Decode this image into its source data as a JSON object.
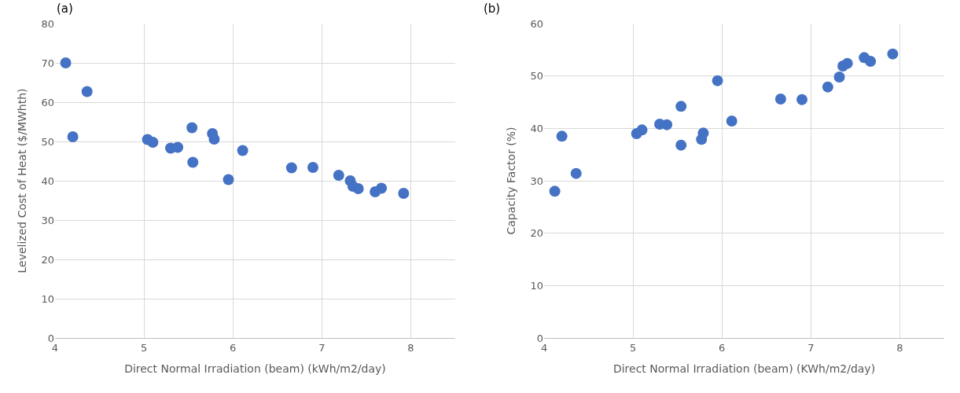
{
  "chart_data": [
    {
      "type": "scatter",
      "annotations": [
        "(a)"
      ],
      "xlabel": "Direct Normal Irradiation (beam) (kWh/m2/day)",
      "ylabel": "Levelized Cost of Heat ($/MWhth)",
      "x": [
        4.12,
        4.2,
        4.36,
        5.04,
        5.1,
        5.3,
        5.38,
        5.54,
        5.55,
        5.77,
        5.79,
        5.95,
        6.11,
        6.66,
        6.9,
        7.19,
        7.32,
        7.35,
        7.41,
        7.6,
        7.67,
        7.92
      ],
      "series": [
        {
          "color": "#4472c4",
          "values": [
            70,
            51.2,
            62.7,
            50.5,
            49.8,
            48.3,
            48.5,
            53.5,
            44.7,
            52,
            50.6,
            40.3,
            47.7,
            43.3,
            43.4,
            41.4,
            40,
            38.6,
            38,
            37.2,
            38.1,
            36.8
          ]
        }
      ],
      "xlim": [
        4,
        8.5
      ],
      "xticks": [
        4,
        5,
        6,
        7,
        8
      ],
      "ylim": [
        0,
        80
      ],
      "yticks": [
        0,
        10,
        20,
        30,
        40,
        50,
        60,
        70,
        80
      ],
      "grid": true,
      "marker": "circle"
    },
    {
      "type": "scatter",
      "annotations": [
        "(b)"
      ],
      "xlabel": "Direct Normal Irradiation (beam) (KWh/m2/day)",
      "ylabel": "Capacity Factor (%)",
      "x": [
        4.12,
        4.2,
        4.36,
        5.04,
        5.1,
        5.3,
        5.38,
        5.54,
        5.54,
        5.77,
        5.79,
        5.95,
        6.11,
        6.66,
        6.9,
        7.19,
        7.32,
        7.36,
        7.41,
        7.6,
        7.67,
        7.92
      ],
      "series": [
        {
          "color": "#4472c4",
          "values": [
            28,
            38.5,
            31.4,
            39,
            39.7,
            40.8,
            40.7,
            44.2,
            36.8,
            37.9,
            39.1,
            49.1,
            41.4,
            45.6,
            45.5,
            47.9,
            49.8,
            51.9,
            52.4,
            53.5,
            52.8,
            54.2
          ]
        }
      ],
      "xlim": [
        4,
        8.5
      ],
      "xticks": [
        4,
        5,
        6,
        7,
        8
      ],
      "ylim": [
        0,
        60
      ],
      "yticks": [
        0,
        10,
        20,
        30,
        40,
        50,
        60
      ],
      "grid": true,
      "marker": "circle"
    }
  ]
}
